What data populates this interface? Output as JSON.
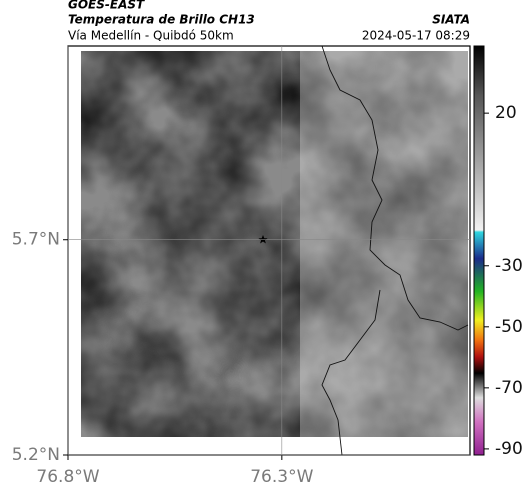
{
  "header": {
    "source": "GOES-EAST",
    "product": "Temperatura de Brillo CH13",
    "region": "Vía Medellín - Quibdó 50km",
    "org": "SIATA",
    "datetime": "2024-05-17 08:29"
  },
  "map": {
    "xlim": [
      -76.8,
      -75.86
    ],
    "ylim": [
      5.2,
      6.15
    ],
    "xticks": [
      {
        "value": -76.8,
        "label": "76.8°W"
      },
      {
        "value": -76.3,
        "label": "76.3°W"
      }
    ],
    "yticks": [
      {
        "value": 5.2,
        "label": "5.2°N"
      },
      {
        "value": 5.7,
        "label": "5.7°N"
      }
    ]
  },
  "colorbar": {
    "clim": [
      -92,
      42
    ],
    "ticks": [
      20,
      -30,
      -50,
      -70,
      -90
    ]
  }
}
